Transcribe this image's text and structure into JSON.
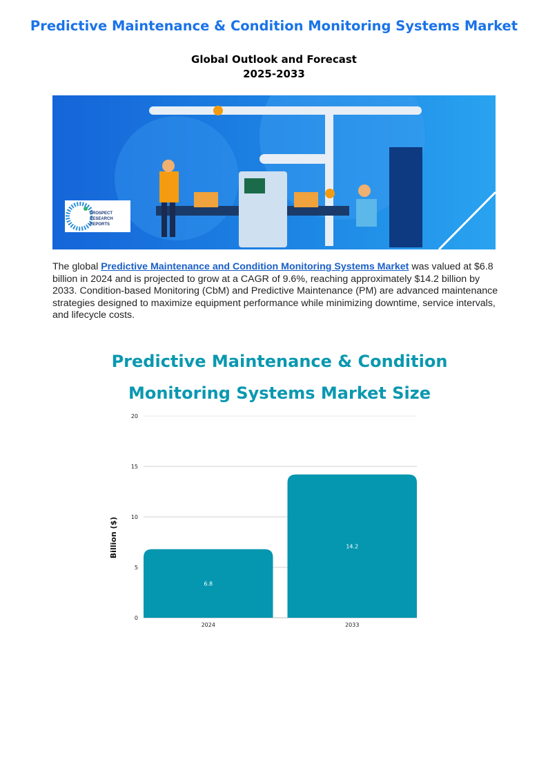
{
  "header": {
    "title": "Predictive Maintenance & Condition Monitoring Systems Market",
    "subtitle_line1": "Global Outlook and Forecast",
    "subtitle_line2": "2025-2033"
  },
  "banner": {
    "logo_text": "PROSPECT RESEARCH REPORTS",
    "colors": {
      "primary": "#1e88e5",
      "accent": "#f39c12"
    }
  },
  "intro": {
    "before_link": "The global ",
    "link_text": "Predictive Maintenance and Condition Monitoring Systems Market",
    "after_link": " was valued at $6.8 billion in 2024 and is projected to grow at a CAGR of 9.6%, reaching approximately $14.2 billion by 2033. Condition-based Monitoring (CbM) and Predictive Maintenance (PM) are advanced maintenance strategies designed to maximize equipment performance while minimizing downtime, service intervals, and lifecycle costs."
  },
  "chart_data": {
    "type": "bar",
    "title_line1": "Predictive Maintenance & Condition",
    "title_line2": "Monitoring Systems Market Size",
    "categories": [
      "2024",
      "2033"
    ],
    "values": [
      6.8,
      14.2
    ],
    "data_labels": [
      "6.8",
      "14.2"
    ],
    "xlabel": "",
    "ylabel": "Billion ($)",
    "ylim": [
      0,
      20
    ],
    "yticks": [
      "0",
      "5",
      "10",
      "15",
      "20"
    ],
    "grid": true,
    "bar_color": "#0596b0"
  }
}
